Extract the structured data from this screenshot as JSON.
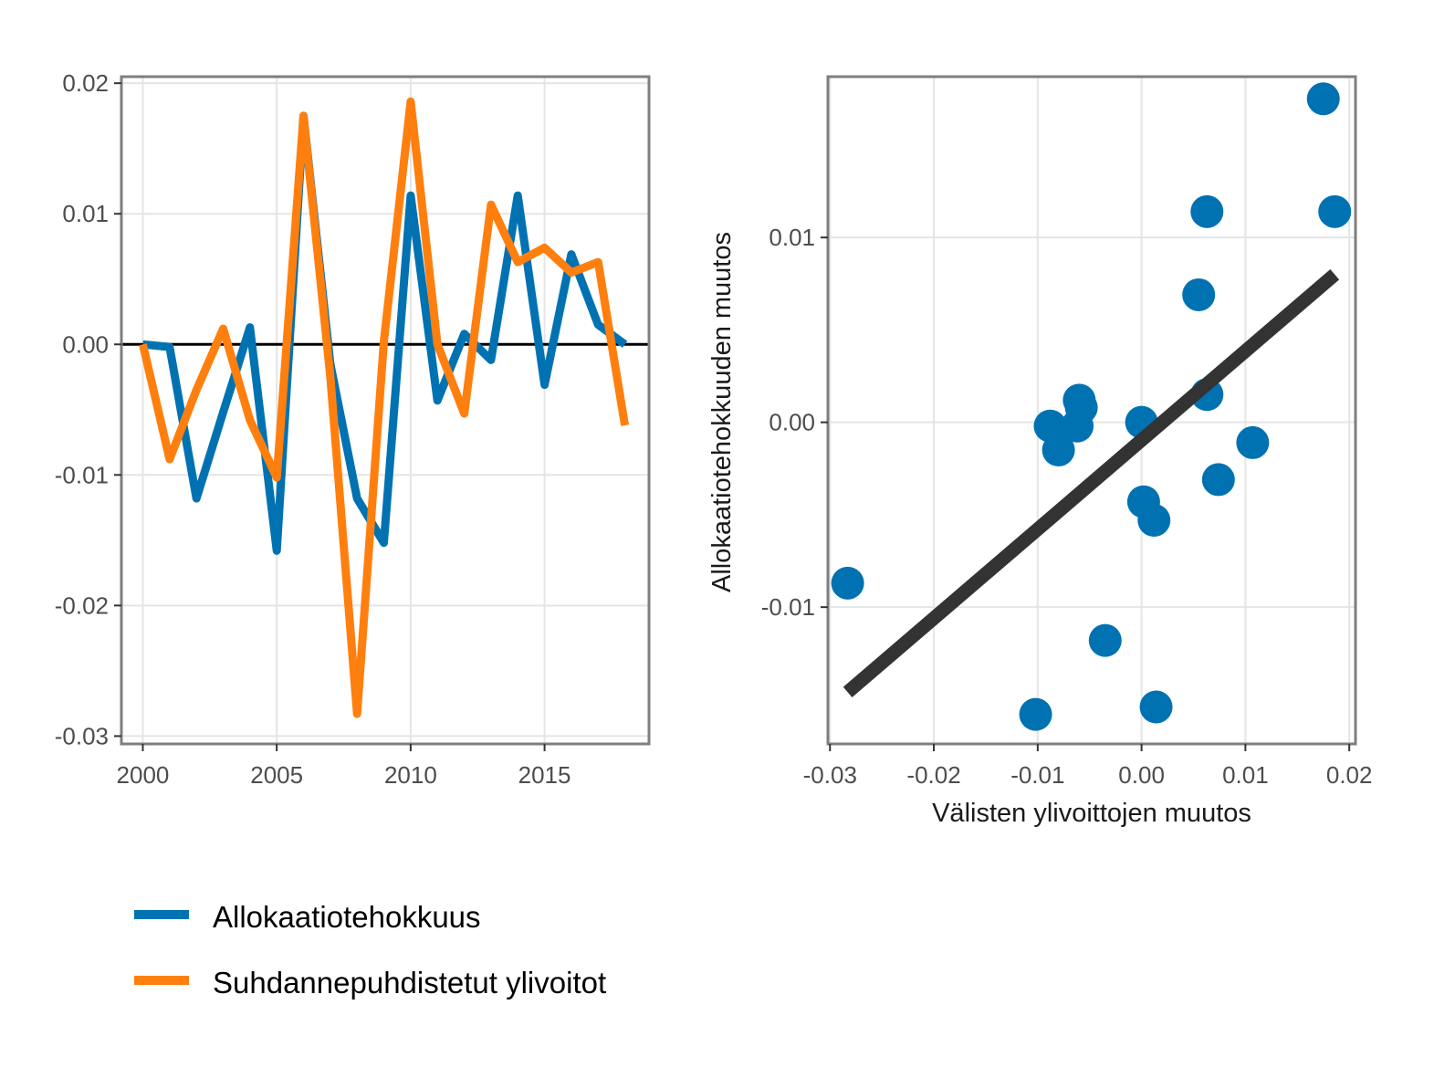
{
  "colors": {
    "allokaatio": "#0072B2",
    "ylivoitot": "#FF7F0E",
    "regression": "#333333",
    "grid": "#e5e5e5",
    "panel_border": "#7f7f7f",
    "tick_text": "#4d4d4d"
  },
  "legend": {
    "items": [
      {
        "label": "Allokaatiotehokkuus",
        "color": "#0072B2"
      },
      {
        "label": "Suhdannepuhdistetut ylivoitot",
        "color": "#FF7F0E"
      }
    ],
    "position": "bottom-left"
  },
  "chart_data": [
    {
      "type": "line",
      "title": "",
      "xlabel": "",
      "ylabel": "",
      "xlim": [
        1999.2,
        2018.9
      ],
      "ylim": [
        -0.0306,
        0.0205
      ],
      "x_ticks": [
        2000,
        2005,
        2010,
        2015
      ],
      "x_tick_labels": [
        "2000",
        "2005",
        "2010",
        "2015"
      ],
      "y_ticks": [
        -0.03,
        -0.02,
        -0.01,
        0.0,
        0.01,
        0.02
      ],
      "y_tick_labels": [
        "-0.03",
        "-0.02",
        "-0.01",
        "0.00",
        "0.01",
        "0.02"
      ],
      "grid": true,
      "reference_line_y": 0.0,
      "x": [
        2000,
        2001,
        2002,
        2003,
        2004,
        2005,
        2006,
        2007,
        2008,
        2009,
        2010,
        2011,
        2012,
        2013,
        2014,
        2015,
        2016,
        2017,
        2018
      ],
      "series": [
        {
          "name": "Allokaatiotehokkuus",
          "color": "#0072B2",
          "values": [
            0.0,
            -0.0002,
            -0.0118,
            -0.0052,
            0.0013,
            -0.0158,
            0.0175,
            -0.0015,
            -0.0118,
            -0.0152,
            0.0114,
            -0.0043,
            0.0008,
            -0.0012,
            0.0114,
            -0.0031,
            0.0069,
            0.0015,
            0.0
          ]
        },
        {
          "name": "Suhdannepuhdistetut ylivoitot",
          "color": "#FF7F0E",
          "values": [
            0.0,
            -0.0088,
            -0.0035,
            0.0012,
            -0.0058,
            -0.0102,
            0.0175,
            -0.0025,
            -0.0283,
            0.0002,
            0.0186,
            0.0,
            -0.0053,
            0.0107,
            0.0063,
            0.0074,
            0.0055,
            0.0063,
            -0.0062
          ]
        }
      ]
    },
    {
      "type": "scatter",
      "title": "",
      "xlabel": "Välisten ylivoittojen muutos",
      "ylabel": "Allokaatiotehokkuuden muutos",
      "xlim": [
        -0.0302,
        0.0206
      ],
      "ylim": [
        -0.0174,
        0.0187
      ],
      "x_ticks": [
        -0.03,
        -0.02,
        -0.01,
        0.0,
        0.01,
        0.02
      ],
      "x_tick_labels": [
        "-0.03",
        "-0.02",
        "-0.01",
        "0.00",
        "0.01",
        "0.02"
      ],
      "y_ticks": [
        -0.01,
        0.0,
        0.01
      ],
      "y_tick_labels": [
        "-0.01",
        "0.00",
        "0.01"
      ],
      "grid": true,
      "point_color": "#0072B2",
      "points": [
        {
          "x": -0.0283,
          "y": -0.0087
        },
        {
          "x": -0.0102,
          "y": -0.0158
        },
        {
          "x": -0.0088,
          "y": -0.0002
        },
        {
          "x": -0.008,
          "y": -0.0015
        },
        {
          "x": -0.0062,
          "y": -0.0002
        },
        {
          "x": -0.006,
          "y": 0.0012
        },
        {
          "x": -0.0058,
          "y": 0.0008
        },
        {
          "x": -0.0035,
          "y": -0.0118
        },
        {
          "x": 0.0,
          "y": 0.0
        },
        {
          "x": 0.0002,
          "y": -0.0043
        },
        {
          "x": 0.0012,
          "y": -0.0053
        },
        {
          "x": 0.0014,
          "y": -0.0154
        },
        {
          "x": 0.0055,
          "y": 0.0069
        },
        {
          "x": 0.0063,
          "y": 0.0114
        },
        {
          "x": 0.0063,
          "y": 0.0015
        },
        {
          "x": 0.0074,
          "y": -0.0031
        },
        {
          "x": 0.0107,
          "y": -0.0011
        },
        {
          "x": 0.0175,
          "y": 0.0175
        },
        {
          "x": 0.0186,
          "y": 0.0114
        }
      ],
      "regression": {
        "x": [
          -0.0283,
          0.0186
        ],
        "y": [
          -0.0146,
          0.008
        ],
        "color": "#333333"
      }
    }
  ]
}
